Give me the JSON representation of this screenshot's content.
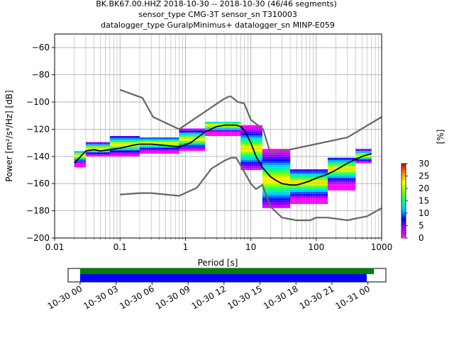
{
  "title_lines": [
    "BK.BK67.00.HHZ   2018-10-30 -- 2018-10-30  (46/46 segments)",
    "sensor_type CMG-3T sensor_sn T310003",
    "datalogger_type GuralpMinimus+ datalogger_sn MINP-E059"
  ],
  "chart_data": {
    "type": "heatmap",
    "xlabel": "Period [s]",
    "ylabel": "Power [m²/s⁴/Hz] [dB]",
    "xscale": "log",
    "xlim": [
      0.01,
      1000
    ],
    "ylim": [
      -200,
      -50
    ],
    "x_ticks": [
      {
        "value": 0.01,
        "label": "0.01"
      },
      {
        "value": 0.1,
        "label": "0.1"
      },
      {
        "value": 1,
        "label": "1"
      },
      {
        "value": 10,
        "label": "10"
      },
      {
        "value": 100,
        "label": "100"
      },
      {
        "value": 1000,
        "label": "1000"
      }
    ],
    "y_ticks": [
      {
        "value": -60,
        "label": "−60"
      },
      {
        "value": -80,
        "label": "−80"
      },
      {
        "value": -100,
        "label": "−100"
      },
      {
        "value": -120,
        "label": "−120"
      },
      {
        "value": -140,
        "label": "−140"
      },
      {
        "value": -160,
        "label": "−160"
      },
      {
        "value": -180,
        "label": "−180"
      },
      {
        "value": -200,
        "label": "−200"
      }
    ],
    "grid": true,
    "colorbar": {
      "label": "[%]",
      "range": [
        0,
        30
      ],
      "ticks": [
        {
          "value": 0,
          "label": "0"
        },
        {
          "value": 5,
          "label": "5"
        },
        {
          "value": 10,
          "label": "10"
        },
        {
          "value": 15,
          "label": "15"
        },
        {
          "value": 20,
          "label": "20"
        },
        {
          "value": 25,
          "label": "25"
        },
        {
          "value": 30,
          "label": "30"
        }
      ]
    },
    "mode_line": {
      "x": [
        0.02,
        0.025,
        0.03,
        0.04,
        0.05,
        0.07,
        0.1,
        0.15,
        0.2,
        0.3,
        0.5,
        0.8,
        1.2,
        2,
        3,
        4,
        5,
        6,
        7,
        8,
        10,
        12,
        15,
        20,
        25,
        30,
        40,
        50,
        60,
        80,
        100,
        150,
        200,
        300,
        500,
        700
      ],
      "y": [
        -145,
        -140,
        -136,
        -135,
        -136,
        -135,
        -134,
        -132,
        -131,
        -131,
        -132,
        -133,
        -130,
        -122,
        -118,
        -117,
        -117,
        -117,
        -118,
        -121,
        -130,
        -140,
        -148,
        -155,
        -158,
        -160,
        -161,
        -161,
        -160,
        -158,
        -156,
        -153,
        -150,
        -145,
        -140,
        -138
      ]
    },
    "nlnm": {
      "x": [
        0.1,
        0.2,
        0.3,
        0.8,
        1.5,
        2.5,
        4,
        5,
        6,
        10,
        12,
        15,
        20,
        30,
        50,
        80,
        100,
        150,
        300,
        600,
        1000
      ],
      "y": [
        -168,
        -167,
        -167,
        -169,
        -163,
        -149,
        -143,
        -141,
        -141,
        -160,
        -164,
        -161,
        -177,
        -185,
        -187,
        -187,
        -185,
        -185,
        -187,
        -184,
        -178
      ]
    },
    "nhnm": {
      "x": [
        0.1,
        0.22,
        0.32,
        0.8,
        3.8,
        4.6,
        5,
        6.3,
        7.9,
        10,
        15.4,
        20,
        300,
        1000
      ],
      "y": [
        -91,
        -97,
        -111,
        -120,
        -98,
        -96,
        -96,
        -100,
        -101,
        -113,
        -120,
        -138,
        -126,
        -111
      ]
    },
    "histogram": [
      {
        "x_range": [
          0.02,
          0.03
        ],
        "y_range": [
          -148,
          -136
        ],
        "peak": -140
      },
      {
        "x_range": [
          0.03,
          0.07
        ],
        "y_range": [
          -140,
          -130
        ],
        "peak": -135
      },
      {
        "x_range": [
          0.07,
          0.2
        ],
        "y_range": [
          -140,
          -125
        ],
        "peak": -132
      },
      {
        "x_range": [
          0.2,
          0.8
        ],
        "y_range": [
          -138,
          -126
        ],
        "peak": -131
      },
      {
        "x_range": [
          0.8,
          2
        ],
        "y_range": [
          -136,
          -120
        ],
        "peak": -128
      },
      {
        "x_range": [
          2,
          7
        ],
        "y_range": [
          -125,
          -115
        ],
        "peak": -118
      },
      {
        "x_range": [
          7,
          15
        ],
        "y_range": [
          -150,
          -118
        ],
        "peak": -135
      },
      {
        "x_range": [
          15,
          40
        ],
        "y_range": [
          -178,
          -135
        ],
        "peak": -158
      },
      {
        "x_range": [
          40,
          150
        ],
        "y_range": [
          -175,
          -150
        ],
        "peak": -160
      },
      {
        "x_range": [
          150,
          400
        ],
        "y_range": [
          -165,
          -142
        ],
        "peak": -150
      },
      {
        "x_range": [
          400,
          700
        ],
        "y_range": [
          -145,
          -135
        ],
        "peak": -140
      }
    ]
  },
  "timeline": {
    "tick_labels": [
      "10-30 00",
      "10-30 03",
      "10-30 06",
      "10-30 09",
      "10-30 12",
      "10-30 15",
      "10-30 18",
      "10-30 21",
      "10-31 00"
    ],
    "xlim_hours": [
      -1,
      25.5
    ],
    "green_bar_hours": [
      0,
      24.5
    ],
    "blue_bar_hours": [
      0,
      23.9
    ],
    "colors": {
      "green": "#008000",
      "blue": "#0000ff"
    }
  },
  "colors": {
    "mode_line": "#000000",
    "noise_models": "#666666",
    "grid": "#b0b0b0"
  }
}
